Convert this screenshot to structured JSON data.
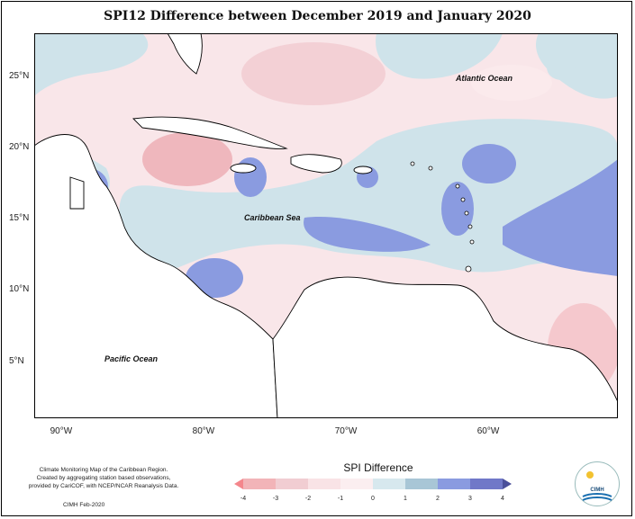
{
  "title": "SPI12 Difference between December 2019 and January 2020",
  "map": {
    "x_ticks": [
      {
        "label": "90°W",
        "lon": -90
      },
      {
        "label": "80°W",
        "lon": -80
      },
      {
        "label": "70°W",
        "lon": -70
      },
      {
        "label": "60°W",
        "lon": -60
      }
    ],
    "y_ticks": [
      {
        "label": "25°N",
        "lat": 25
      },
      {
        "label": "20°N",
        "lat": 20
      },
      {
        "label": "15°N",
        "lat": 15
      },
      {
        "label": "10°N",
        "lat": 10
      },
      {
        "label": "5°N",
        "lat": 5
      }
    ],
    "lon_range": [
      -92,
      -51
    ],
    "lat_range": [
      1,
      28
    ],
    "ocean_labels": {
      "atlantic": "Atlantic Ocean",
      "caribbean": "Caribbean Sea",
      "pacific": "Pacific Ocean"
    }
  },
  "legend": {
    "title": "SPI Difference",
    "tick_labels": [
      "-4",
      "-3",
      "-2",
      "-1",
      "0",
      "1",
      "2",
      "3",
      "4"
    ],
    "colors": [
      "#f4868c",
      "#f2b4b8",
      "#f1cdd2",
      "#f9e3e6",
      "#ceE2e8",
      "#a8c6d6",
      "#8a9be0",
      "#7078c8",
      "#4a4f9a"
    ]
  },
  "credit": {
    "line1": "Climate Monitoring Map of the Caribbean Region.",
    "line2": "Created by aggregating station based observations,",
    "line3": "provided by CariCOF, with NCEP/NCAR Reanalysis Data.",
    "date": "CIMH Feb-2020"
  },
  "logo": {
    "text": "CIMH"
  }
}
